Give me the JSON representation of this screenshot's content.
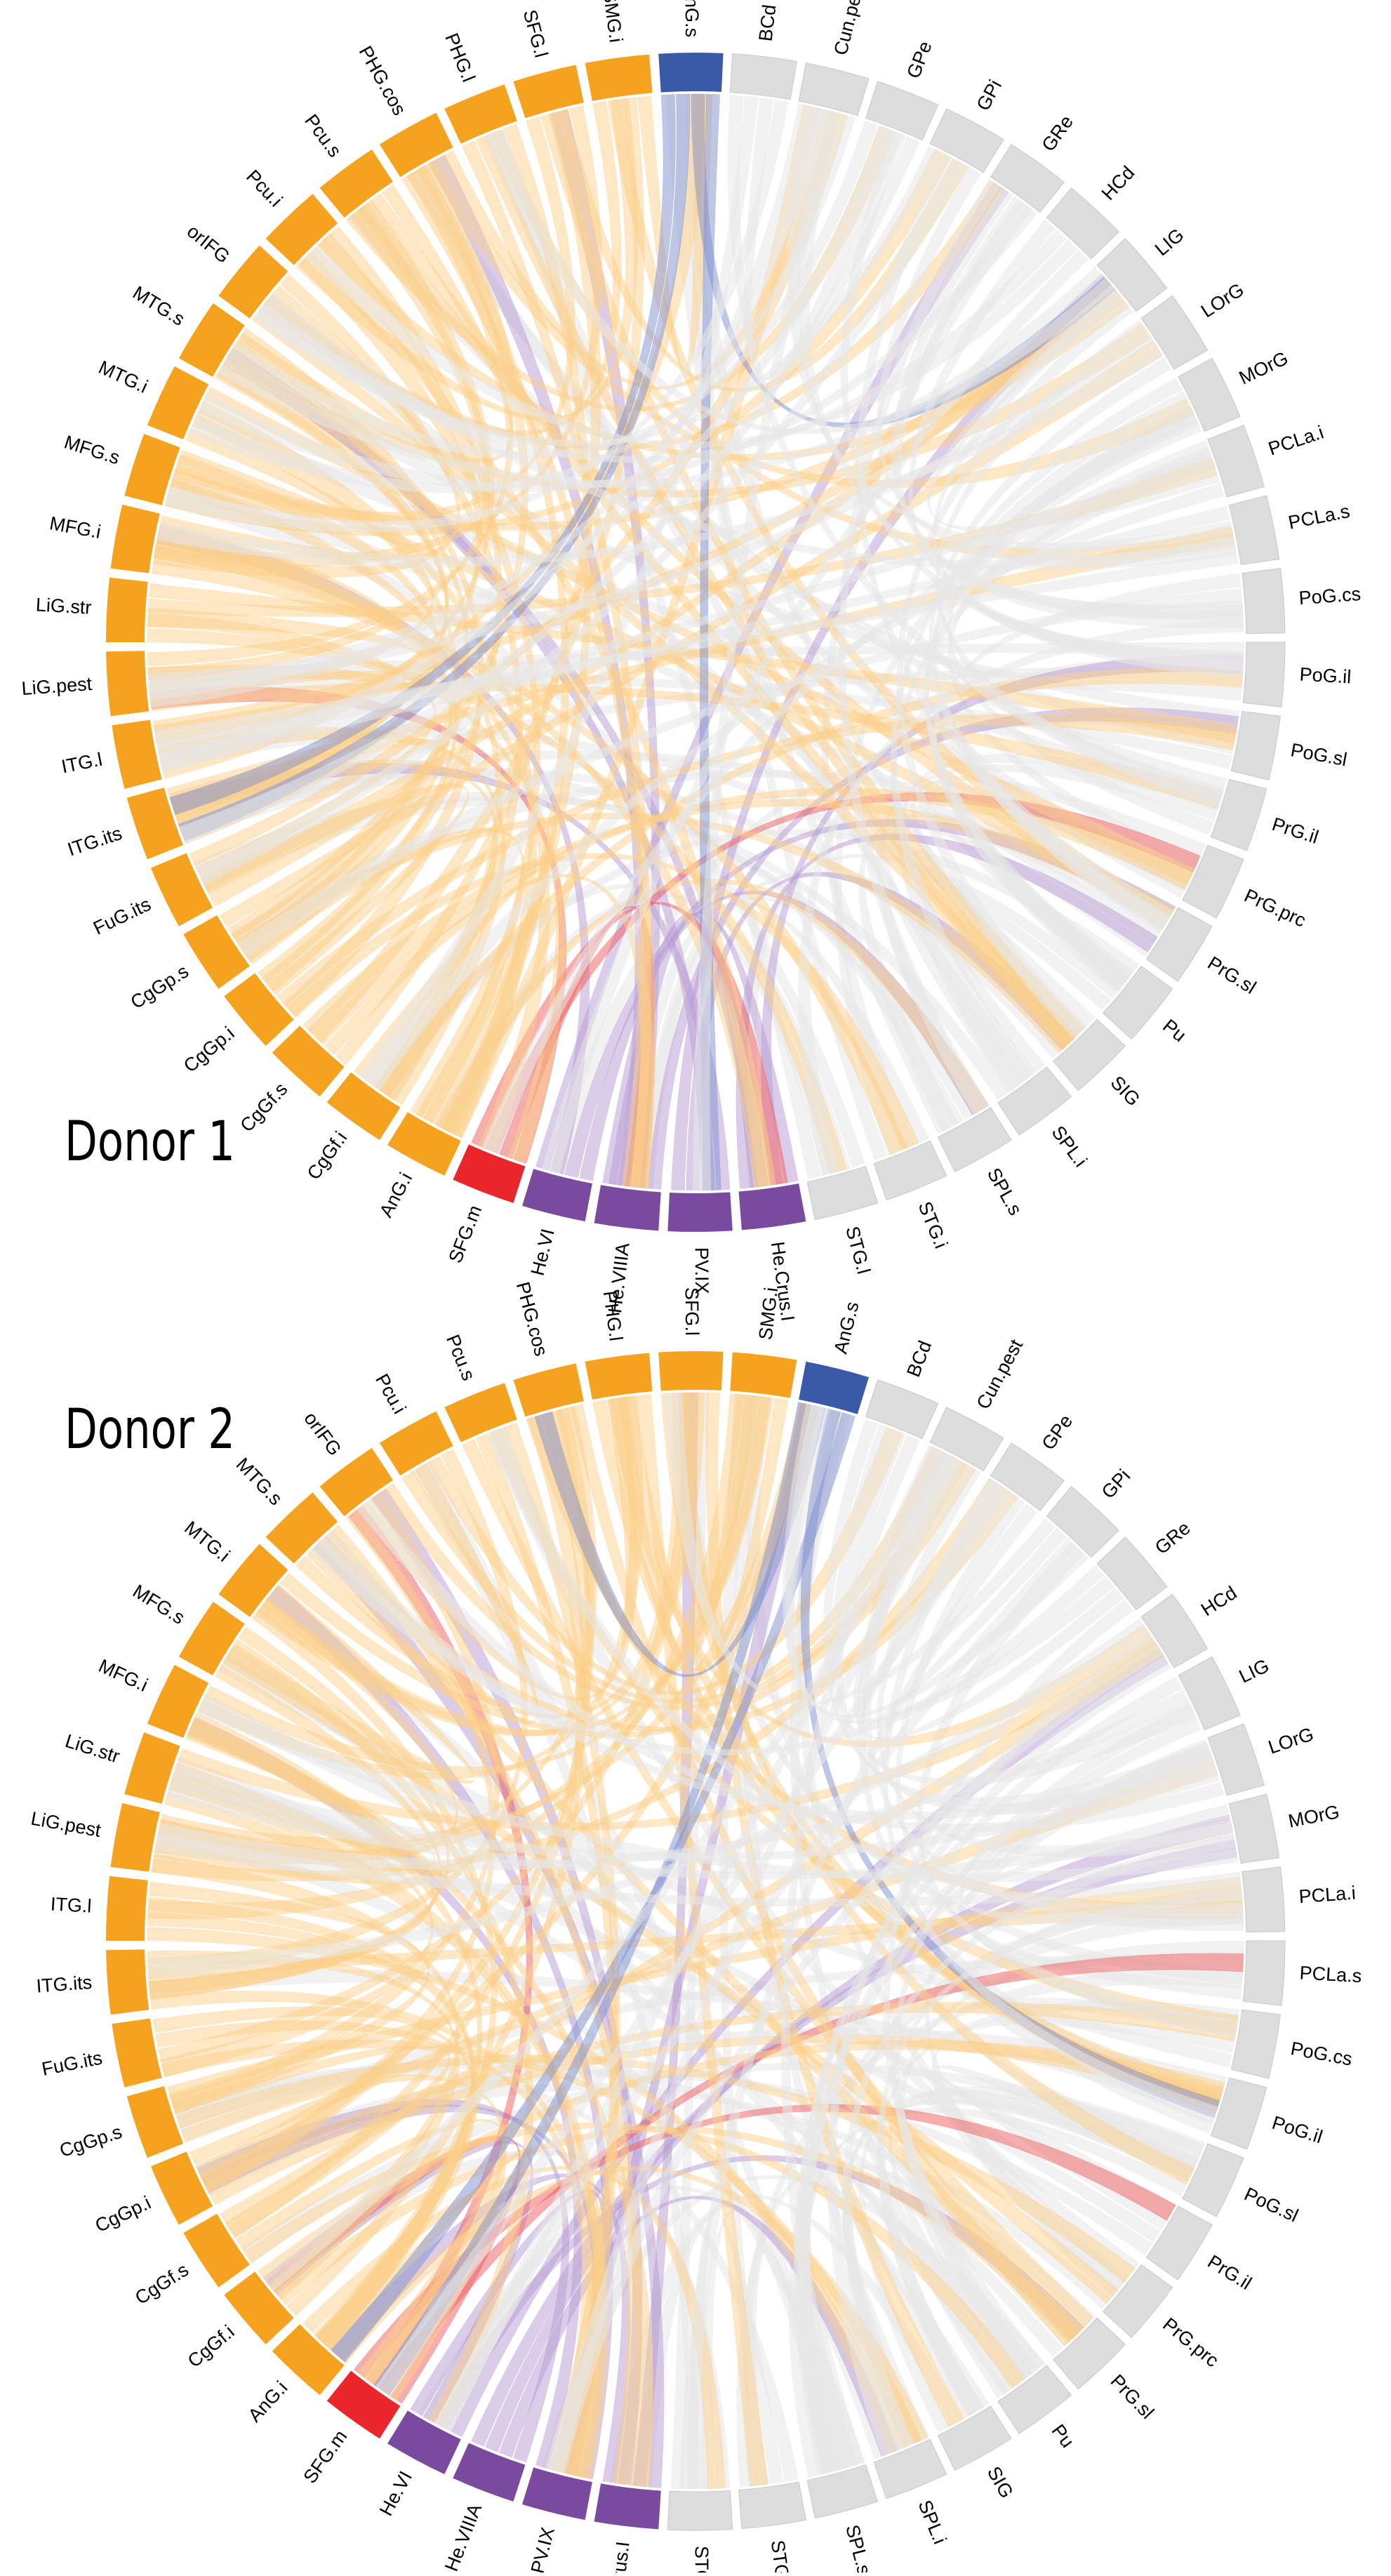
{
  "colors": {
    "gray": "#dddddd",
    "gray_edge": "#c8c8c8",
    "orange": "#f5a21f",
    "blue": "#3a5aa7",
    "red": "#e8262b",
    "purple": "#7a4a9e",
    "ribbon_gray": "#e7e7e7",
    "ribbon_orange": "#fbd08a",
    "ribbon_blue": "#7f8fd0",
    "ribbon_red": "#ee5c5e",
    "ribbon_purple": "#b79bd4"
  },
  "panels": [
    {
      "title": "Donor 1",
      "segments": [
        {
          "label": "PoG.il",
          "color": "gray"
        },
        {
          "label": "PoG.sl",
          "color": "gray"
        },
        {
          "label": "PrG.il",
          "color": "gray"
        },
        {
          "label": "PrG.prc",
          "color": "gray"
        },
        {
          "label": "PrG.sl",
          "color": "gray"
        },
        {
          "label": "Pu",
          "color": "gray"
        },
        {
          "label": "SIG",
          "color": "gray"
        },
        {
          "label": "SPL.i",
          "color": "gray"
        },
        {
          "label": "SPL.s",
          "color": "gray"
        },
        {
          "label": "STG.i",
          "color": "gray"
        },
        {
          "label": "STG.l",
          "color": "gray"
        },
        {
          "label": "He.Crus.I",
          "color": "purple"
        },
        {
          "label": "PV.IX",
          "color": "purple"
        },
        {
          "label": "He.VIIIA",
          "color": "purple"
        },
        {
          "label": "He.VI",
          "color": "purple"
        },
        {
          "label": "SFG.m",
          "color": "red"
        },
        {
          "label": "AnG.i",
          "color": "orange"
        },
        {
          "label": "CgGf.i",
          "color": "orange"
        },
        {
          "label": "CgGf.s",
          "color": "orange"
        },
        {
          "label": "CgGp.i",
          "color": "orange"
        },
        {
          "label": "CgGp.s",
          "color": "orange"
        },
        {
          "label": "FuG.its",
          "color": "orange"
        },
        {
          "label": "ITG.its",
          "color": "orange"
        },
        {
          "label": "ITG.l",
          "color": "orange"
        },
        {
          "label": "LiG.pest",
          "color": "orange"
        },
        {
          "label": "LiG.str",
          "color": "orange"
        },
        {
          "label": "MFG.i",
          "color": "orange"
        },
        {
          "label": "MFG.s",
          "color": "orange"
        },
        {
          "label": "MTG.i",
          "color": "orange"
        },
        {
          "label": "MTG.s",
          "color": "orange"
        },
        {
          "label": "orIFG",
          "color": "orange"
        },
        {
          "label": "Pcu.i",
          "color": "orange"
        },
        {
          "label": "Pcu.s",
          "color": "orange"
        },
        {
          "label": "PHG.cos",
          "color": "orange"
        },
        {
          "label": "PHG.l",
          "color": "orange"
        },
        {
          "label": "SFG.l",
          "color": "orange"
        },
        {
          "label": "SMG.i",
          "color": "orange"
        },
        {
          "label": "AnG.s",
          "color": "blue"
        },
        {
          "label": "BCd",
          "color": "gray"
        },
        {
          "label": "Cun.pest",
          "color": "gray"
        },
        {
          "label": "GPe",
          "color": "gray"
        },
        {
          "label": "GPi",
          "color": "gray"
        },
        {
          "label": "GRe",
          "color": "gray"
        },
        {
          "label": "HCd",
          "color": "gray"
        },
        {
          "label": "LIG",
          "color": "gray"
        },
        {
          "label": "LOrG",
          "color": "gray"
        },
        {
          "label": "MOrG",
          "color": "gray"
        },
        {
          "label": "PCLa.i",
          "color": "gray"
        },
        {
          "label": "PCLa.s",
          "color": "gray"
        },
        {
          "label": "PoG.cs",
          "color": "gray"
        }
      ]
    },
    {
      "title": "Donor 2",
      "segments": [
        {
          "label": "PCLa.s",
          "color": "gray"
        },
        {
          "label": "PoG.cs",
          "color": "gray"
        },
        {
          "label": "PoG.il",
          "color": "gray"
        },
        {
          "label": "PoG.sl",
          "color": "gray"
        },
        {
          "label": "PrG.il",
          "color": "gray"
        },
        {
          "label": "PrG.prc",
          "color": "gray"
        },
        {
          "label": "PrG.sl",
          "color": "gray"
        },
        {
          "label": "Pu",
          "color": "gray"
        },
        {
          "label": "SIG",
          "color": "gray"
        },
        {
          "label": "SPL.i",
          "color": "gray"
        },
        {
          "label": "SPL.s",
          "color": "gray"
        },
        {
          "label": "STG.i",
          "color": "gray"
        },
        {
          "label": "STG.l",
          "color": "gray"
        },
        {
          "label": "He.Crus.I",
          "color": "purple"
        },
        {
          "label": "PV.IX",
          "color": "purple"
        },
        {
          "label": "He.VIIIA",
          "color": "purple"
        },
        {
          "label": "He.VI",
          "color": "purple"
        },
        {
          "label": "SFG.m",
          "color": "red"
        },
        {
          "label": "AnG.i",
          "color": "orange"
        },
        {
          "label": "CgGf.i",
          "color": "orange"
        },
        {
          "label": "CgGf.s",
          "color": "orange"
        },
        {
          "label": "CgGp.i",
          "color": "orange"
        },
        {
          "label": "CgGp.s",
          "color": "orange"
        },
        {
          "label": "FuG.its",
          "color": "orange"
        },
        {
          "label": "ITG.its",
          "color": "orange"
        },
        {
          "label": "ITG.l",
          "color": "orange"
        },
        {
          "label": "LiG.pest",
          "color": "orange"
        },
        {
          "label": "LiG.str",
          "color": "orange"
        },
        {
          "label": "MFG.i",
          "color": "orange"
        },
        {
          "label": "MFG.s",
          "color": "orange"
        },
        {
          "label": "MTG.i",
          "color": "orange"
        },
        {
          "label": "MTG.s",
          "color": "orange"
        },
        {
          "label": "orIFG",
          "color": "orange"
        },
        {
          "label": "Pcu.i",
          "color": "orange"
        },
        {
          "label": "Pcu.s",
          "color": "orange"
        },
        {
          "label": "PHG.cos",
          "color": "orange"
        },
        {
          "label": "PHG.l",
          "color": "orange"
        },
        {
          "label": "SFG.l",
          "color": "orange"
        },
        {
          "label": "SMG.i",
          "color": "orange"
        },
        {
          "label": "AnG.s",
          "color": "blue"
        },
        {
          "label": "BCd",
          "color": "gray"
        },
        {
          "label": "Cun.pest",
          "color": "gray"
        },
        {
          "label": "GPe",
          "color": "gray"
        },
        {
          "label": "GPi",
          "color": "gray"
        },
        {
          "label": "GRe",
          "color": "gray"
        },
        {
          "label": "HCd",
          "color": "gray"
        },
        {
          "label": "LIG",
          "color": "gray"
        },
        {
          "label": "LOrG",
          "color": "gray"
        },
        {
          "label": "MOrG",
          "color": "gray"
        },
        {
          "label": "PCLa.i",
          "color": "gray"
        }
      ]
    }
  ]
}
